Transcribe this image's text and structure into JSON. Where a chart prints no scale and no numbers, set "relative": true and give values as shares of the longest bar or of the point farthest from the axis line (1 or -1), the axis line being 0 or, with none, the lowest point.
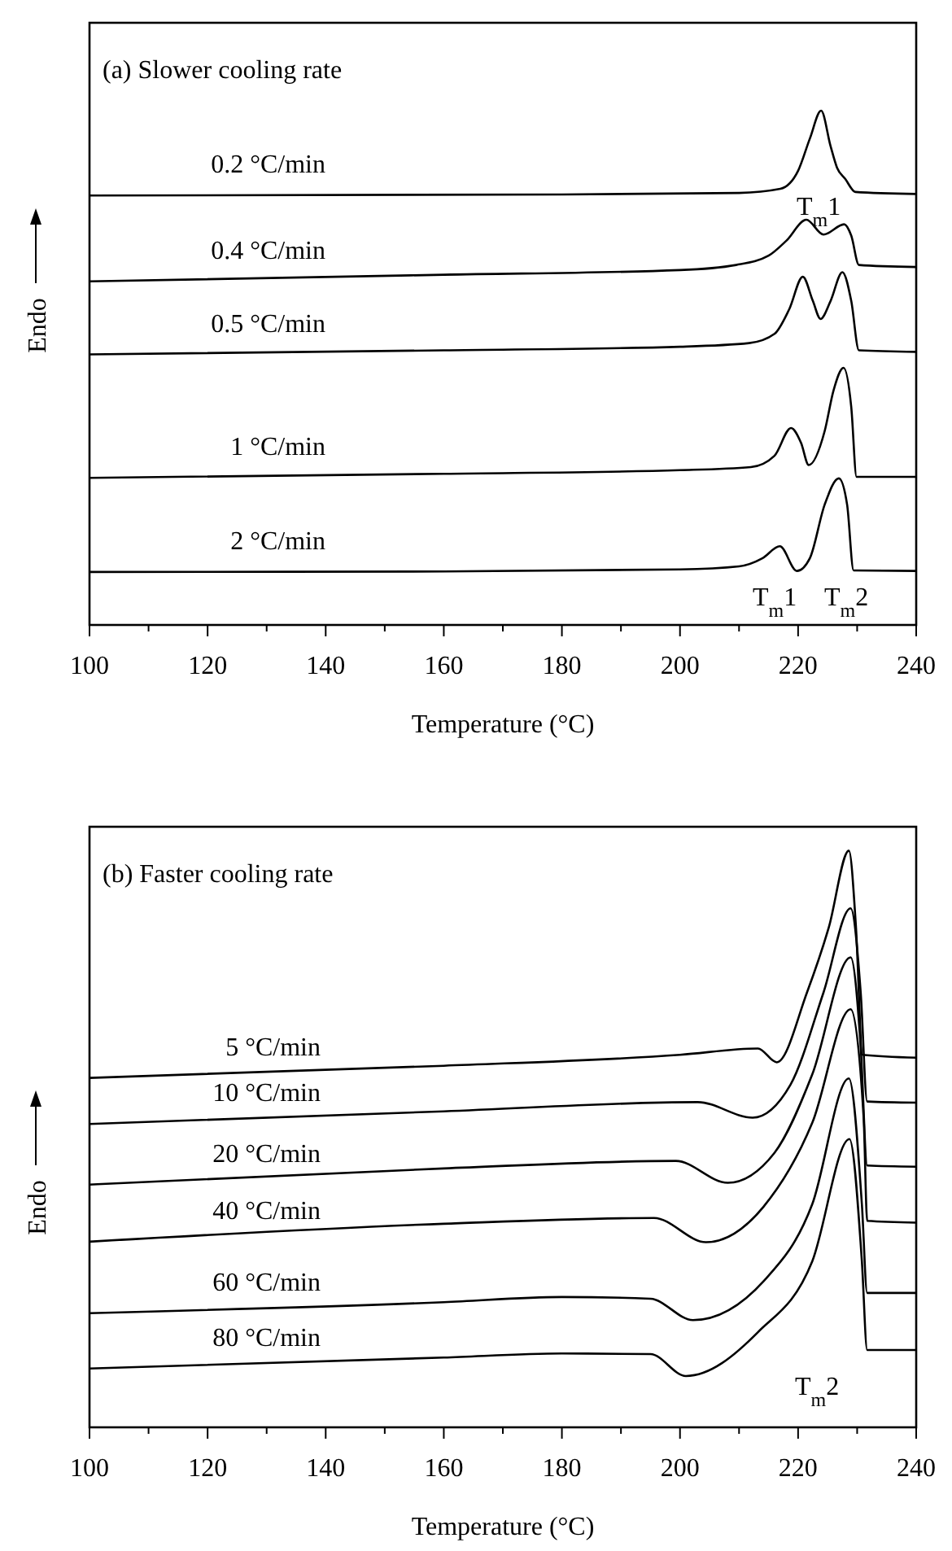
{
  "chart_data": [
    {
      "type": "line",
      "title": "(a) Slower cooling rate",
      "xlabel": "Temperature (°C)",
      "ylabel": "Endo",
      "relative": true,
      "xlim": [
        100,
        240
      ],
      "xticks": [
        100,
        {
          "value": 110,
          "label": null
        },
        120,
        {
          "value": 130,
          "label": null
        },
        140,
        {
          "value": 150,
          "label": null
        },
        160,
        {
          "value": 170,
          "label": null
        },
        180,
        {
          "value": 190,
          "label": null
        },
        200,
        {
          "value": 210,
          "label": null
        },
        220,
        {
          "value": 230,
          "label": null
        },
        240
      ],
      "series": [
        {
          "name": "0.2 °C/min",
          "color": "#000000",
          "x": [
            100,
            180,
            210,
            217,
            220,
            222,
            223.9,
            225.5,
            226.6,
            228,
            229.7,
            240
          ],
          "values": [
            0.835,
            0.837,
            0.84,
            0.848,
            0.883,
            0.946,
            1,
            0.931,
            0.889,
            0.867,
            0.842,
            0.838
          ]
        },
        {
          "name": "0.4 °C/min",
          "color": "#000000",
          "x": [
            100,
            160,
            200,
            209.5,
            215,
            218,
            221.4,
            224.3,
            227.8,
            229,
            230.3,
            240
          ],
          "values": [
            0.668,
            0.681,
            0.69,
            0.7,
            0.718,
            0.747,
            0.788,
            0.759,
            0.779,
            0.757,
            0.7,
            0.696
          ]
        },
        {
          "name": "0.5 °C/min",
          "color": "#000000",
          "x": [
            100,
            160,
            200,
            211.7,
            216,
            218.5,
            220.8,
            222.5,
            223.8,
            225.5,
            227.5,
            229,
            230.3,
            240
          ],
          "values": [
            0.526,
            0.534,
            0.541,
            0.548,
            0.566,
            0.614,
            0.677,
            0.63,
            0.595,
            0.63,
            0.686,
            0.63,
            0.534,
            0.531
          ]
        },
        {
          "name": "1 °C/min",
          "color": "#000000",
          "x": [
            100,
            160,
            200,
            212,
            216,
            218.8,
            220.5,
            221.8,
            224.5,
            226,
            227.7,
            229,
            229.9,
            240
          ],
          "values": [
            0.286,
            0.294,
            0.301,
            0.307,
            0.329,
            0.383,
            0.354,
            0.311,
            0.377,
            0.456,
            0.5,
            0.424,
            0.288,
            0.288
          ]
        },
        {
          "name": "2 °C/min",
          "color": "#000000",
          "x": [
            100,
            160,
            200,
            210,
            214,
            216.9,
            219.8,
            222,
            224.5,
            226.9,
            228.3,
            229.4,
            240
          ],
          "values": [
            0.103,
            0.104,
            0.108,
            0.114,
            0.13,
            0.153,
            0.105,
            0.13,
            0.234,
            0.285,
            0.234,
            0.106,
            0.105
          ]
        }
      ],
      "annotations": [
        "T$_{m}$1",
        "T$_{m}$1",
        "T$_{m}$2"
      ]
    },
    {
      "type": "line",
      "title": "(b) Faster cooling rate",
      "xlabel": "Temperature (°C)",
      "ylabel": "Endo",
      "relative": true,
      "xlim": [
        100,
        240
      ],
      "xticks": [
        100,
        {
          "value": 110,
          "label": null
        },
        120,
        {
          "value": 130,
          "label": null
        },
        140,
        {
          "value": 150,
          "label": null
        },
        160,
        {
          "value": 170,
          "label": null
        },
        180,
        {
          "value": 190,
          "label": null
        },
        200,
        {
          "value": 210,
          "label": null
        },
        220,
        {
          "value": 230,
          "label": null
        },
        240
      ],
      "series": [
        {
          "name": "5 °C/min",
          "color": "#000000",
          "x": [
            100,
            160,
            200,
            213.2,
            216.4,
            221.5,
            225.2,
            228.6,
            229.8,
            230.9,
            240
          ],
          "values": [
            0.606,
            0.627,
            0.646,
            0.657,
            0.633,
            0.754,
            0.867,
            1,
            0.867,
            0.646,
            0.641
          ]
        },
        {
          "name": "10 °C/min",
          "color": "#000000",
          "x": [
            100,
            160,
            203,
            212.3,
            218.7,
            224.3,
            228.9,
            230.6,
            231.7,
            240
          ],
          "values": [
            0.526,
            0.548,
            0.564,
            0.537,
            0.594,
            0.754,
            0.9,
            0.754,
            0.565,
            0.563
          ]
        },
        {
          "name": "20 °C/min",
          "color": "#000000",
          "x": [
            100,
            160,
            199.3,
            208.1,
            216,
            222.4,
            228.9,
            230.6,
            231.7,
            240
          ],
          "values": [
            0.421,
            0.449,
            0.462,
            0.424,
            0.476,
            0.612,
            0.815,
            0.66,
            0.454,
            0.452
          ]
        },
        {
          "name": "40 °C/min",
          "color": "#000000",
          "x": [
            100,
            160,
            195.6,
            204.4,
            214.1,
            222.4,
            228.9,
            231.1,
            231.7,
            240
          ],
          "values": [
            0.322,
            0.353,
            0.363,
            0.321,
            0.382,
            0.528,
            0.725,
            0.537,
            0.358,
            0.355
          ]
        },
        {
          "name": "60 °C/min",
          "color": "#000000",
          "x": [
            100,
            160,
            180,
            195,
            202.2,
            214.2,
            222.4,
            228.6,
            230.8,
            231.7,
            240
          ],
          "values": [
            0.198,
            0.217,
            0.226,
            0.223,
            0.186,
            0.254,
            0.387,
            0.605,
            0.387,
            0.233,
            0.233
          ]
        },
        {
          "name": "80 °C/min",
          "color": "#000000",
          "x": [
            100,
            160,
            180,
            195,
            201,
            213.2,
            222.4,
            228.7,
            230.8,
            231.7,
            240
          ],
          "values": [
            0.102,
            0.121,
            0.128,
            0.127,
            0.089,
            0.165,
            0.288,
            0.5,
            0.288,
            0.134,
            0.134
          ]
        }
      ],
      "annotations": [
        "T$_{m}$2"
      ]
    }
  ]
}
